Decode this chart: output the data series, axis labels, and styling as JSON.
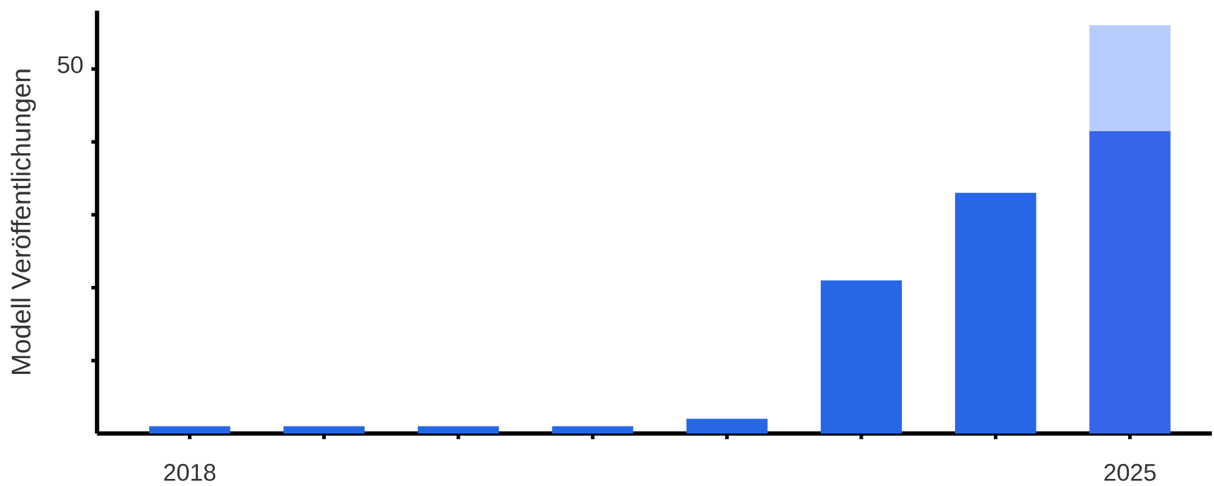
{
  "chart_data": {
    "type": "bar",
    "ylabel": "Modell Veröffentlichungen",
    "categories": [
      "2018",
      null,
      null,
      null,
      null,
      null,
      null,
      "2025"
    ],
    "stacked": true,
    "series": [
      {
        "colors": [
          "#2667e8",
          "#2667e8",
          "#2667e8",
          "#2667e8",
          "#2667e8",
          "#2667e8",
          "#2667e8",
          "#3765ea"
        ],
        "values": [
          1,
          1,
          1,
          1,
          2,
          21,
          33,
          41.5
        ]
      },
      {
        "color": "#b8cdfd",
        "values": [
          null,
          null,
          null,
          null,
          null,
          null,
          null,
          14.5
        ]
      }
    ],
    "ylim": [
      0,
      58
    ],
    "yticks": [
      {
        "value": 10,
        "label": null
      },
      {
        "value": 20,
        "label": null
      },
      {
        "value": 30,
        "label": null
      },
      {
        "value": 40,
        "label": null
      },
      50
    ],
    "grid": false
  }
}
